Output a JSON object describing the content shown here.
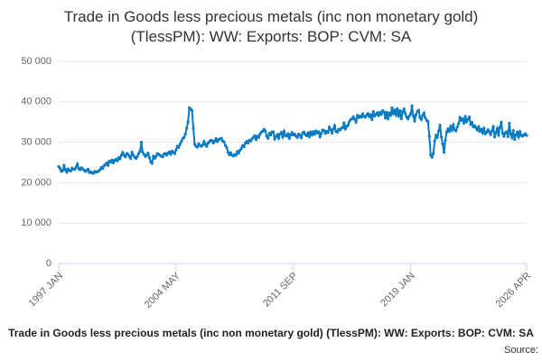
{
  "chart_data": {
    "type": "line",
    "title": "Trade in Goods less precious metals (inc non monetary gold) (TlessPM): WW: Exports: BOP: CVM: SA",
    "caption": "Trade in Goods less precious metals (inc non monetary gold) (TlessPM): WW: Exports: BOP: CVM: SA",
    "source": "Source:",
    "ylim": [
      0,
      50000
    ],
    "yticks": [
      0,
      {
        "value": 10000,
        "label": "10 000"
      },
      {
        "value": 20000,
        "label": "20 000"
      },
      {
        "value": 30000,
        "label": "30 000"
      },
      {
        "value": 40000,
        "label": "40 000"
      },
      {
        "value": 50000,
        "label": "50 000"
      }
    ],
    "grid": true,
    "categories": [
      "1997 JAN",
      null,
      null,
      null,
      null,
      null,
      null,
      null,
      null,
      null,
      null,
      null,
      null,
      null,
      null,
      null,
      null,
      null,
      null,
      null,
      null,
      null,
      null,
      null,
      null,
      null,
      null,
      null,
      null,
      null,
      null,
      null,
      null,
      null,
      null,
      null,
      null,
      null,
      null,
      null,
      null,
      null,
      null,
      null,
      null,
      null,
      null,
      null,
      null,
      null,
      null,
      null,
      null,
      null,
      null,
      null,
      null,
      null,
      null,
      null,
      null,
      null,
      null,
      null,
      null,
      null,
      null,
      null,
      null,
      null,
      null,
      null,
      null,
      null,
      null,
      null,
      null,
      null,
      null,
      null,
      null,
      null,
      null,
      null,
      null,
      null,
      null,
      null,
      "2004 MAY",
      null,
      null,
      null,
      null,
      null,
      null,
      null,
      null,
      null,
      null,
      null,
      null,
      null,
      null,
      null,
      null,
      null,
      null,
      null,
      null,
      null,
      null,
      null,
      null,
      null,
      null,
      null,
      null,
      null,
      null,
      null,
      null,
      null,
      null,
      null,
      null,
      null,
      null,
      null,
      null,
      null,
      null,
      null,
      null,
      null,
      null,
      null,
      null,
      null,
      null,
      null,
      null,
      null,
      null,
      null,
      null,
      null,
      null,
      null,
      null,
      null,
      null,
      null,
      null,
      null,
      null,
      null,
      null,
      null,
      null,
      null,
      null,
      null,
      null,
      null,
      null,
      null,
      null,
      null,
      null,
      null,
      null,
      null,
      null,
      null,
      null,
      null,
      "2011 SEP",
      null,
      null,
      null,
      null,
      null,
      null,
      null,
      null,
      null,
      null,
      null,
      null,
      null,
      null,
      null,
      null,
      null,
      null,
      null,
      null,
      null,
      null,
      null,
      null,
      null,
      null,
      null,
      null,
      null,
      null,
      null,
      null,
      null,
      null,
      null,
      null,
      null,
      null,
      null,
      null,
      null,
      null,
      null,
      null,
      null,
      null,
      null,
      null,
      null,
      null,
      null,
      null,
      null,
      null,
      null,
      null,
      null,
      null,
      null,
      null,
      null,
      null,
      null,
      null,
      null,
      null,
      null,
      null,
      null,
      null,
      null,
      null,
      null,
      null,
      null,
      null,
      null,
      null,
      null,
      null,
      null,
      null,
      null,
      null,
      null,
      null,
      null,
      "2019 JAN",
      null,
      null,
      null,
      null,
      null,
      null,
      null,
      null,
      null,
      null,
      null,
      null,
      null,
      null,
      null,
      null,
      null,
      null,
      null,
      null,
      null,
      null,
      null,
      null,
      null,
      null,
      null,
      null,
      null,
      null,
      null,
      null,
      null,
      null,
      null,
      null,
      null,
      null,
      null,
      null,
      null,
      null,
      null,
      null,
      null,
      null,
      null,
      null,
      null,
      null,
      null,
      null,
      null,
      null,
      null,
      null,
      null,
      null,
      null,
      null,
      null,
      null,
      null,
      null,
      null,
      null,
      null,
      null,
      null,
      null,
      null,
      null,
      null,
      null,
      null,
      null,
      null,
      null,
      null,
      null,
      null,
      null,
      null,
      null,
      null,
      null,
      "2026 APR"
    ],
    "series": [
      {
        "name": "TlessPM",
        "color": "#0b7bc1",
        "values": [
          24000,
          23500,
          22800,
          23000,
          24200,
          23200,
          22600,
          23400,
          23000,
          22900,
          23600,
          23300,
          23300,
          23800,
          24600,
          23500,
          23200,
          23700,
          23400,
          23100,
          22800,
          23000,
          23300,
          22500,
          22700,
          22400,
          22300,
          22800,
          22600,
          22700,
          22900,
          23200,
          23800,
          23500,
          24200,
          24500,
          24900,
          24300,
          25300,
          25100,
          25600,
          24900,
          25500,
          25800,
          25400,
          26200,
          25900,
          26800,
          27500,
          26800,
          26400,
          27200,
          27000,
          26500,
          26000,
          27500,
          26800,
          26300,
          26000,
          26500,
          27200,
          27800,
          30000,
          27500,
          27000,
          26500,
          26800,
          27300,
          26200,
          25200,
          24800,
          26500,
          26000,
          26500,
          27200,
          27000,
          26800,
          26500,
          26400,
          27100,
          27200,
          26800,
          27300,
          27600,
          27000,
          27800,
          27500,
          27200,
          28100,
          29000,
          28700,
          29500,
          30200,
          30900,
          31200,
          32000,
          33500,
          35000,
          38500,
          38200,
          37800,
          33500,
          29500,
          29000,
          28800,
          29600,
          29200,
          29000,
          29300,
          30200,
          29500,
          29000,
          29800,
          30100,
          30500,
          30400,
          29800,
          30300,
          30900,
          30200,
          30600,
          30800,
          31000,
          30300,
          30100,
          29200,
          28700,
          27500,
          26900,
          27400,
          26800,
          26600,
          27000,
          26800,
          27700,
          27300,
          28000,
          28500,
          29200,
          28900,
          29800,
          30200,
          29800,
          30500,
          30300,
          30800,
          31200,
          31600,
          30700,
          31500,
          31200,
          32000,
          32500,
          32700,
          33200,
          32800,
          31500,
          31000,
          32200,
          31800,
          32500,
          32600,
          30800,
          31400,
          31900,
          31000,
          32000,
          32400,
          31300,
          32700,
          31700,
          31500,
          32100,
          31000,
          31800,
          32400,
          31800,
          32000,
          31500,
          31200,
          32000,
          31700,
          31100,
          32300,
          32500,
          31900,
          31600,
          32300,
          31400,
          32500,
          31800,
          32600,
          32000,
          32800,
          32300,
          32600,
          31400,
          32200,
          33000,
          32900,
          32200,
          32700,
          32400,
          33700,
          33100,
          32300,
          33300,
          34100,
          32700,
          32500,
          33200,
          33000,
          33500,
          33600,
          34800,
          33300,
          33900,
          34200,
          35100,
          35600,
          35800,
          36300,
          35700,
          35000,
          36600,
          36100,
          36500,
          36200,
          37000,
          36400,
          36200,
          36700,
          37100,
          36300,
          36800,
          35600,
          37600,
          36500,
          36900,
          37300,
          36600,
          37400,
          36900,
          37800,
          37500,
          36000,
          37400,
          35800,
          37200,
          36700,
          38500,
          37100,
          37900,
          36800,
          38300,
          36400,
          37800,
          35800,
          37500,
          38200,
          37100,
          36200,
          35800,
          36500,
          37000,
          39000,
          36500,
          35200,
          36800,
          37600,
          37900,
          36100,
          35600,
          36600,
          37200,
          36000,
          35400,
          35100,
          31500,
          26800,
          26300,
          27200,
          30300,
          31700,
          31200,
          32800,
          34200,
          31300,
          29600,
          27500,
          30500,
          32500,
          33300,
          32700,
          33900,
          33000,
          34300,
          33100,
          32800,
          33800,
          34600,
          36100,
          35400,
          35800,
          34700,
          36400,
          35100,
          35700,
          36200,
          34400,
          34900,
          33800,
          34100,
          33600,
          33000,
          33800,
          32700,
          33200,
          32300,
          33400,
          32100,
          32500,
          33100,
          32600,
          31900,
          32800,
          33900,
          31300,
          32400,
          33400,
          31700,
          33700,
          35000,
          32200,
          31500,
          32300,
          32600,
          31400,
          34700,
          32100,
          31200,
          32900,
          30700,
          31800,
          32500,
          31300,
          32600,
          31700,
          31500,
          31800,
          32100,
          31700
        ]
      }
    ]
  }
}
